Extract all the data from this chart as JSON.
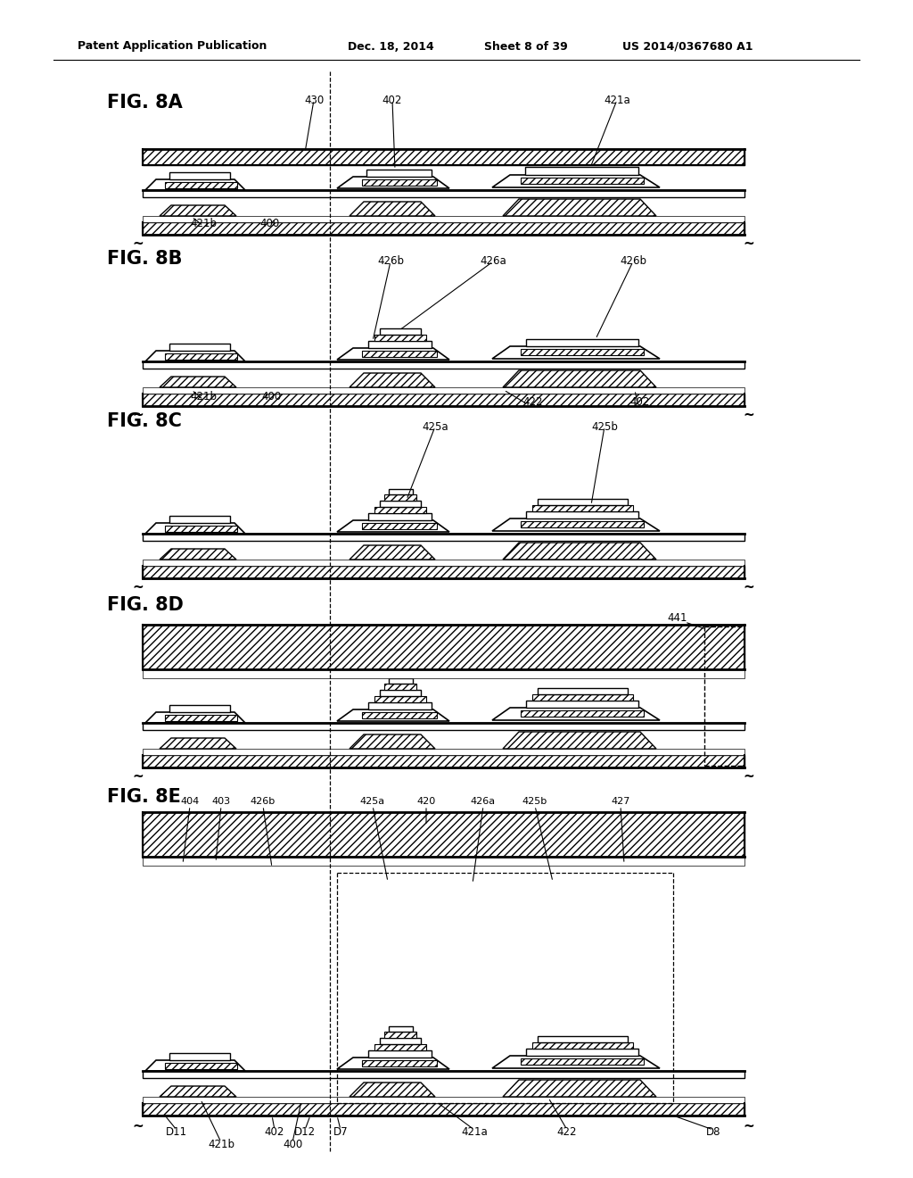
{
  "bg_color": "#ffffff",
  "header_text": "Patent Application Publication",
  "header_date": "Dec. 18, 2014",
  "header_sheet": "Sheet 8 of 39",
  "header_patent": "US 2014/0367680 A1"
}
